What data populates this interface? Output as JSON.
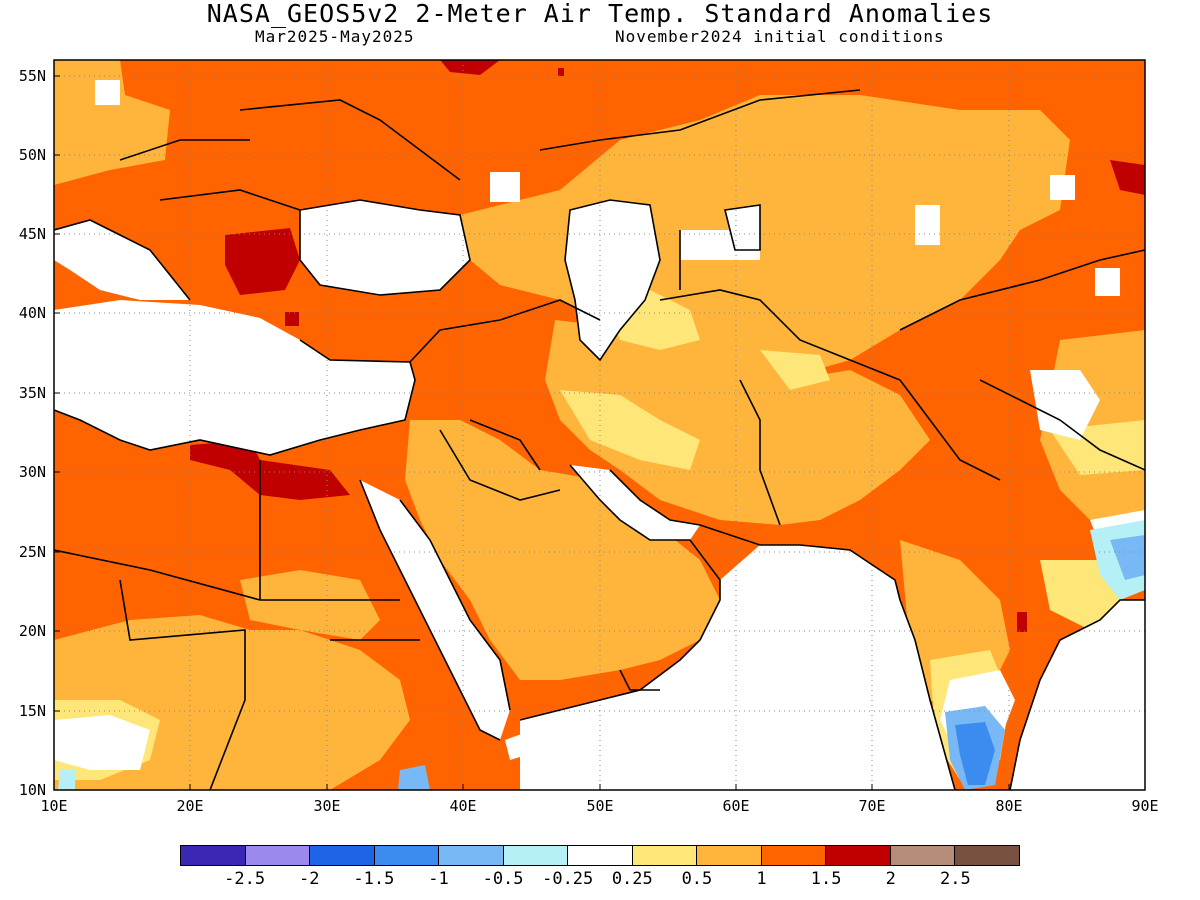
{
  "header": {
    "title": "NASA_GEOS5v2 2-Meter Air Temp. Standard Anomalies",
    "period": "Mar2025-May2025",
    "init": "November2024 initial conditions"
  },
  "axes": {
    "lat_labels": [
      "55N",
      "50N",
      "45N",
      "40N",
      "35N",
      "30N",
      "25N",
      "20N",
      "15N",
      "10N"
    ],
    "lon_labels": [
      "10E",
      "20E",
      "30E",
      "40E",
      "50E",
      "60E",
      "70E",
      "80E",
      "90E"
    ],
    "lon_range": [
      10,
      90
    ],
    "lat_range": [
      10,
      56
    ]
  },
  "colorbar": {
    "colors": [
      "#3a28b4",
      "#9d88ee",
      "#1e64e6",
      "#3c8cf0",
      "#78b9f5",
      "#b4f0f5",
      "#ffffff",
      "#ffe678",
      "#ffb43c",
      "#ff6400",
      "#c00000",
      "#b48c78",
      "#785040"
    ],
    "labels": [
      "-2.5",
      "-2",
      "-1.5",
      "-1",
      "-0.5",
      "-0.25",
      "0.25",
      "0.5",
      "1",
      "1.5",
      "2",
      "2.5"
    ]
  },
  "map": {
    "colors": {
      "ocean": "#ffffff",
      "weak": "#ffffff",
      "light_yellow": "#ffe678",
      "yellow_orange": "#ffb43c",
      "orange": "#ff6400",
      "dark_red": "#c00000",
      "light_blue": "#b4f0f5",
      "mid_blue": "#78b9f5",
      "blue": "#3c8cf0",
      "brown": "#b48c78",
      "border": "#000000"
    }
  }
}
